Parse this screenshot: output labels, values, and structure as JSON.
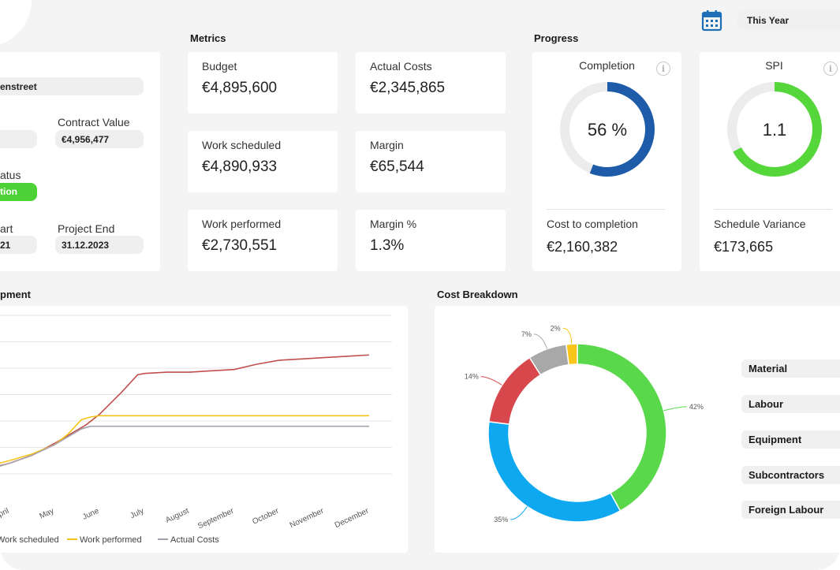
{
  "header": {
    "period_label": "This Year",
    "calendar_icon": "calendar-icon"
  },
  "project": {
    "street": "enstreet",
    "contract_value_label": "Contract Value",
    "contract_value": "€4,956,477",
    "status_label": "atus",
    "status_value": "tion",
    "start_label": "art",
    "start_value": "21",
    "end_label": "Project End",
    "end_value": "31.12.2023"
  },
  "metrics": {
    "title": "Metrics",
    "items": [
      {
        "label": "Budget",
        "value": "€4,895,600"
      },
      {
        "label": "Actual Costs",
        "value": "€2,345,865"
      },
      {
        "label": "Work scheduled",
        "value": "€4,890,933"
      },
      {
        "label": "Margin",
        "value": "€65,544"
      },
      {
        "label": "Work performed",
        "value": "€2,730,551"
      },
      {
        "label": "Margin %",
        "value": "1.3%"
      }
    ]
  },
  "progress": {
    "title": "Progress",
    "completion": {
      "label": "Completion",
      "value_text": "56 %",
      "fraction": 0.56,
      "color": "#1e5ba8",
      "sub_label": "Cost to completion",
      "sub_value": "€2,160,382"
    },
    "spi": {
      "label": "SPI",
      "value_text": "1.1",
      "fraction": 0.67,
      "color": "#55d63b",
      "sub_label": "Schedule Variance",
      "sub_value": "€173,665"
    }
  },
  "development": {
    "title": "pment",
    "legend": [
      {
        "label": "Work scheduled",
        "color": "#c0504d"
      },
      {
        "label": "Work performed",
        "color": "#f5c518"
      },
      {
        "label": "Actual Costs",
        "color": "#a8a0ac"
      }
    ]
  },
  "chart_data": [
    {
      "type": "line",
      "title": "pment",
      "categories": [
        "April",
        "May",
        "June",
        "July",
        "August",
        "September",
        "October",
        "November",
        "December"
      ],
      "ylim": [
        0,
        6
      ],
      "grid": true,
      "series": [
        {
          "name": "Work scheduled",
          "color": "#c0504d",
          "x": [
            -0.7,
            0,
            0.5,
            1,
            1.3,
            1.7,
            2,
            2.5,
            2.85,
            3,
            3.5,
            4,
            4.5,
            5,
            5.5,
            6,
            6.5,
            7,
            7.5,
            8
          ],
          "y": [
            0.1,
            0.4,
            0.7,
            1.15,
            1.45,
            1.85,
            2.25,
            3.1,
            3.75,
            3.8,
            3.85,
            3.85,
            3.9,
            3.95,
            4.15,
            4.3,
            4.35,
            4.4,
            4.45,
            4.5
          ]
        },
        {
          "name": "Work performed",
          "color": "#f5c518",
          "x": [
            -0.7,
            0,
            0.5,
            1,
            1.3,
            1.6,
            1.8,
            2,
            2.2,
            2.5,
            3,
            4,
            5,
            6,
            7,
            8
          ],
          "y": [
            0.2,
            0.5,
            0.75,
            1.1,
            1.5,
            2.05,
            2.15,
            2.2,
            2.2,
            2.2,
            2.2,
            2.2,
            2.2,
            2.2,
            2.2,
            2.2
          ]
        },
        {
          "name": "Actual Costs",
          "color": "#a8a0ac",
          "x": [
            -0.7,
            0,
            0.5,
            1,
            1.3,
            1.6,
            1.8,
            2,
            2.5,
            3,
            4,
            5,
            6,
            7,
            8
          ],
          "y": [
            0.05,
            0.4,
            0.7,
            1.1,
            1.4,
            1.7,
            1.8,
            1.8,
            1.8,
            1.8,
            1.8,
            1.8,
            1.8,
            1.8,
            1.8
          ]
        }
      ]
    },
    {
      "type": "pie",
      "title": "Cost Breakdown",
      "categories": [
        "Material",
        "Labour",
        "Equipment",
        "Subcontractors",
        "Foreign Labour"
      ],
      "slices": [
        {
          "label": "Material",
          "value": 42,
          "pct_label": "42%",
          "color": "#5ad84c"
        },
        {
          "label": "Labour",
          "value": 35,
          "pct_label": "35%",
          "color": "#0ea8f0"
        },
        {
          "label": "Equipment",
          "value": 14,
          "pct_label": "14%",
          "color": "#d8474b"
        },
        {
          "label": "Subcontractors",
          "value": 7,
          "pct_label": "7%",
          "color": "#a8a8a8"
        },
        {
          "label": "Foreign Labour",
          "value": 2,
          "pct_label": "2%",
          "color": "#f8c51a"
        }
      ]
    }
  ]
}
